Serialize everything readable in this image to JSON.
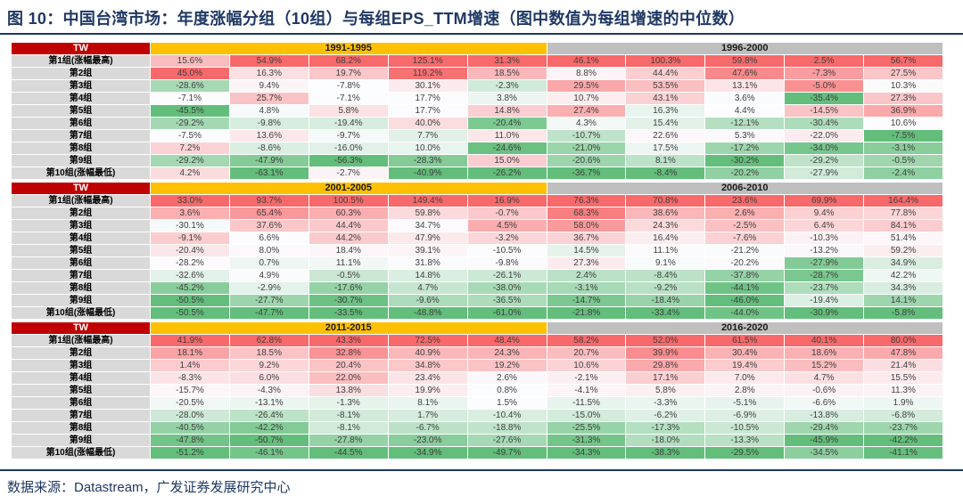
{
  "title": "图 10：中国台湾市场：年度涨幅分组（10组）与每组EPS_TTM增速（图中数值为每组增速的中位数）",
  "footer": {
    "source_text": "数据来源：Datastream，广发证券发展研究中心"
  },
  "colors": {
    "accent_navy": "#1F3864",
    "header_red": "#C00000",
    "period_left_bg": "#FFC000",
    "period_right_bg": "#BFBFBF",
    "label_bg": "#D9D9D9",
    "cell_text": "#3F3F3F",
    "scale_max_red": "#F8696B",
    "scale_mid_white": "#FCFCFF",
    "scale_min_green": "#63BE7B"
  },
  "chart_data": {
    "type": "heatmap",
    "title": "图 10：中国台湾市场：年度涨幅分组（10组）与每组EPS_TTM增速（图中数值为每组增速的中位数）",
    "unit": "%",
    "corner_label": "TW",
    "color_scale": "per-column 3-color scale: max=red #F8696B, median=white #FCFCFF, min=green #63BE7B",
    "row_labels": [
      "第1组(涨幅最高)",
      "第2组",
      "第3组",
      "第4组",
      "第5组",
      "第6组",
      "第7组",
      "第8组",
      "第9组",
      "第10组(涨幅最低)"
    ],
    "sections": [
      {
        "periods": [
          "1991-1995",
          "1996-2000"
        ],
        "left": [
          [
            15.6,
            54.9,
            68.2,
            125.1,
            31.3
          ],
          [
            45.0,
            16.3,
            19.7,
            119.2,
            18.5
          ],
          [
            -28.6,
            9.4,
            -7.8,
            30.1,
            -2.3
          ],
          [
            -7.1,
            25.7,
            -7.1,
            17.7,
            3.8
          ],
          [
            -45.5,
            4.8,
            5.8,
            17.7,
            14.8
          ],
          [
            -29.2,
            -9.8,
            -19.4,
            40.0,
            -20.4
          ],
          [
            -7.5,
            13.6,
            -9.7,
            7.7,
            11.0
          ],
          [
            7.2,
            -8.6,
            -16.0,
            10.0,
            -24.6
          ],
          [
            -29.2,
            -47.9,
            -56.3,
            -28.3,
            15.0
          ],
          [
            4.2,
            -63.1,
            -2.7,
            -40.9,
            -26.2
          ]
        ],
        "right": [
          [
            46.1,
            100.3,
            59.8,
            2.5,
            56.7
          ],
          [
            8.8,
            44.4,
            47.6,
            -7.3,
            27.5
          ],
          [
            29.5,
            53.5,
            13.1,
            -5.0,
            10.3
          ],
          [
            10.7,
            43.1,
            3.6,
            -35.4,
            27.3
          ],
          [
            27.4,
            16.3,
            4.4,
            -14.5,
            36.9
          ],
          [
            4.3,
            15.4,
            -12.1,
            -30.4,
            10.6
          ],
          [
            -10.7,
            22.6,
            5.3,
            -22.0,
            -7.5
          ],
          [
            -21.0,
            17.5,
            -17.2,
            -34.0,
            -3.1
          ],
          [
            -20.6,
            8.1,
            -30.2,
            -29.2,
            -0.5
          ],
          [
            -36.7,
            -8.4,
            -20.2,
            -27.9,
            -2.4
          ]
        ]
      },
      {
        "periods": [
          "2001-2005",
          "2006-2010"
        ],
        "left": [
          [
            33.0,
            93.7,
            100.5,
            149.4,
            16.9
          ],
          [
            3.6,
            65.4,
            60.3,
            59.8,
            -0.7
          ],
          [
            -30.1,
            37.6,
            44.4,
            34.7,
            4.5
          ],
          [
            -9.1,
            6.6,
            44.2,
            47.9,
            -3.2
          ],
          [
            -20.4,
            8.0,
            18.4,
            39.1,
            -10.5
          ],
          [
            -28.2,
            0.7,
            11.1,
            31.8,
            -9.8
          ],
          [
            -32.6,
            4.9,
            -0.5,
            14.8,
            -26.1
          ],
          [
            -45.2,
            -2.9,
            -17.6,
            4.7,
            -38.0
          ],
          [
            -50.5,
            -27.7,
            -30.7,
            -9.6,
            -36.5
          ],
          [
            -50.5,
            -47.7,
            -33.5,
            -48.8,
            -61.0
          ]
        ],
        "right": [
          [
            76.3,
            70.8,
            23.6,
            69.9,
            164.4
          ],
          [
            68.3,
            38.6,
            2.6,
            9.4,
            77.8
          ],
          [
            58.0,
            24.3,
            -2.5,
            6.4,
            84.1
          ],
          [
            36.7,
            16.4,
            -7.6,
            -10.3,
            51.4
          ],
          [
            14.5,
            11.1,
            -21.2,
            -13.2,
            59.2
          ],
          [
            27.3,
            9.1,
            -20.2,
            -27.9,
            34.9
          ],
          [
            2.4,
            -8.4,
            -37.8,
            -28.7,
            42.2
          ],
          [
            -3.1,
            -9.2,
            -44.1,
            -23.7,
            34.3
          ],
          [
            -14.7,
            -18.4,
            -46.0,
            -19.4,
            14.1
          ],
          [
            -21.8,
            -33.4,
            -44.0,
            -30.9,
            -5.8
          ]
        ]
      },
      {
        "periods": [
          "2011-2015",
          "2016-2020"
        ],
        "left": [
          [
            41.9,
            62.8,
            43.3,
            72.5,
            48.4
          ],
          [
            18.1,
            18.5,
            32.8,
            40.9,
            24.3
          ],
          [
            1.4,
            9.2,
            20.4,
            34.8,
            19.2
          ],
          [
            -8.3,
            6.0,
            22.0,
            23.4,
            2.6
          ],
          [
            -15.7,
            -4.3,
            13.8,
            19.9,
            0.8
          ],
          [
            -20.5,
            -13.1,
            -1.3,
            8.1,
            1.5
          ],
          [
            -28.0,
            -26.4,
            -8.1,
            1.7,
            -10.4
          ],
          [
            -40.5,
            -42.2,
            -8.1,
            -6.7,
            -18.8
          ],
          [
            -47.8,
            -50.7,
            -27.8,
            -23.0,
            -27.6
          ],
          [
            -51.2,
            -46.1,
            -44.5,
            -34.9,
            -49.7
          ]
        ],
        "right": [
          [
            58.2,
            52.0,
            61.5,
            40.1,
            80.0
          ],
          [
            20.7,
            39.9,
            30.4,
            18.6,
            47.8
          ],
          [
            10.6,
            29.8,
            19.4,
            15.2,
            21.4
          ],
          [
            -2.1,
            17.1,
            7.0,
            4.7,
            15.5
          ],
          [
            -4.1,
            5.8,
            2.8,
            -0.6,
            11.3
          ],
          [
            -11.5,
            -3.3,
            -5.1,
            -6.6,
            1.9
          ],
          [
            -15.0,
            -6.2,
            -6.9,
            -13.8,
            -6.8
          ],
          [
            -25.5,
            -17.3,
            -10.5,
            -29.4,
            -23.7
          ],
          [
            -31.3,
            -18.0,
            -13.3,
            -45.9,
            -42.2
          ],
          [
            -34.3,
            -38.3,
            -29.5,
            -34.5,
            -41.1
          ]
        ]
      }
    ]
  }
}
